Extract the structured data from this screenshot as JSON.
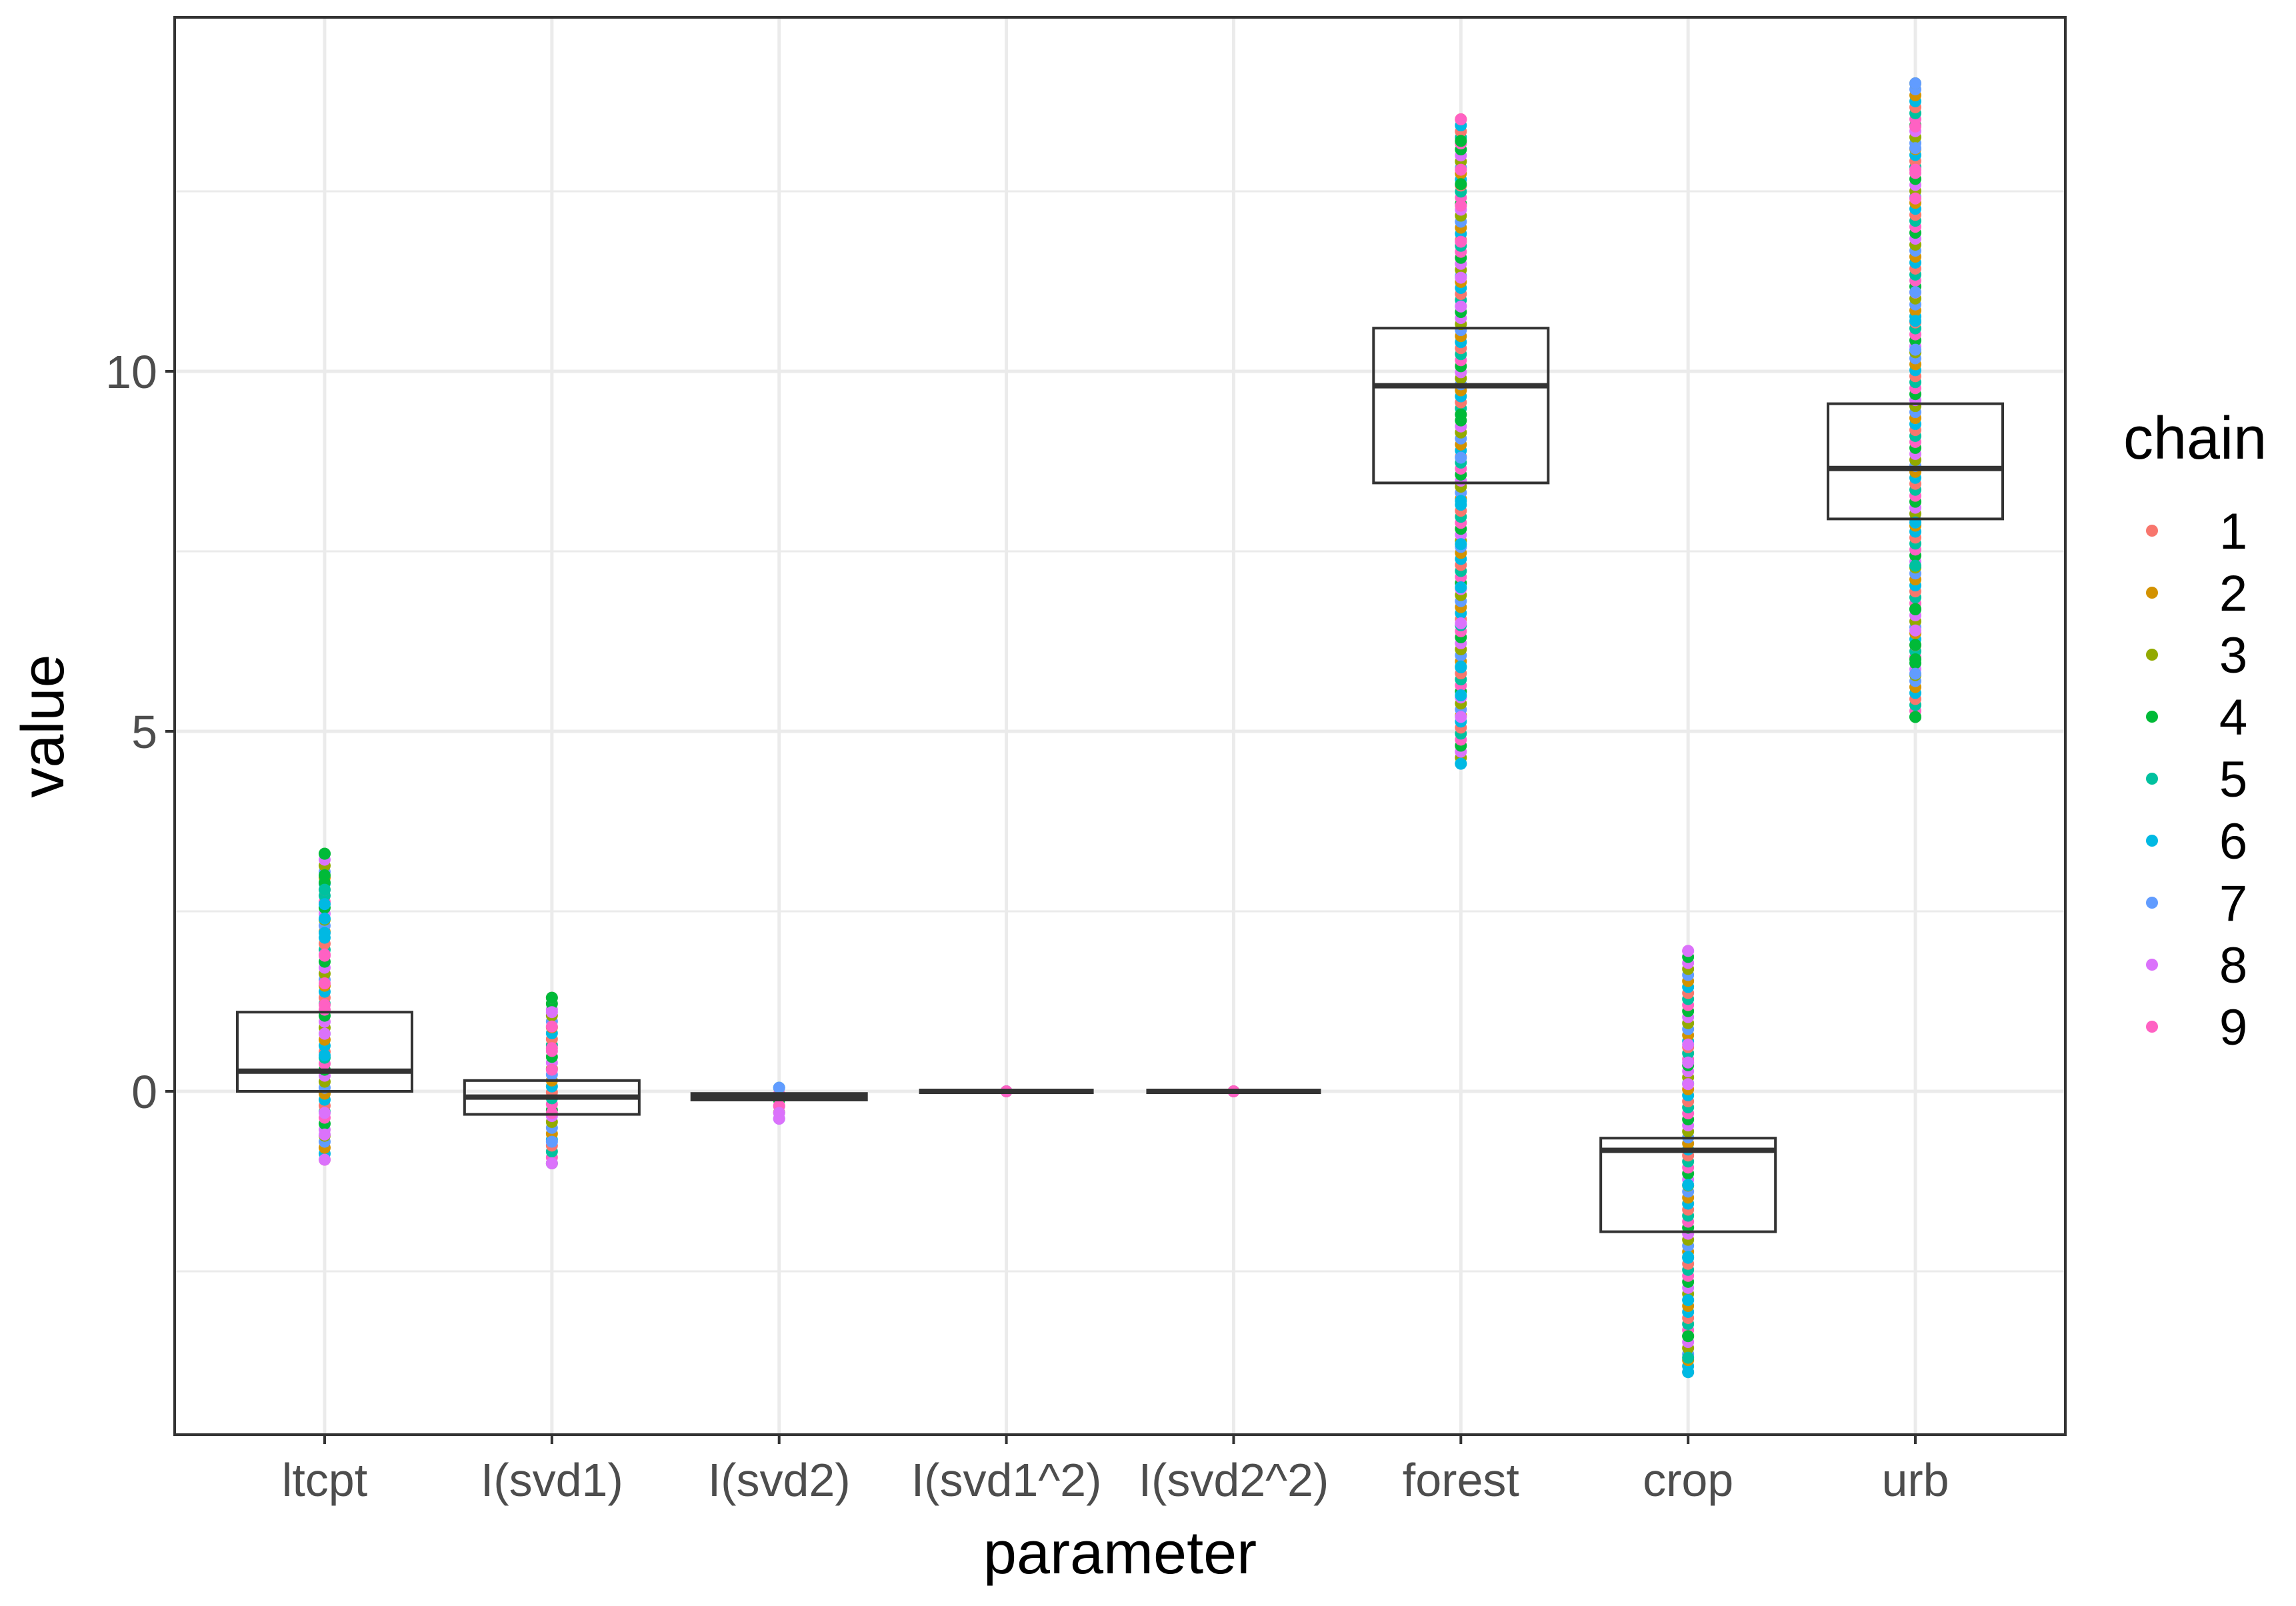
{
  "chart_data": {
    "type": "boxplot",
    "xlabel": "parameter",
    "ylabel": "value",
    "ylim": [
      -4.7,
      15
    ],
    "y_ticks": [
      0,
      5,
      10
    ],
    "y_tick_labels": [
      "0",
      "5",
      "10"
    ],
    "grid": true,
    "legend": {
      "title": "chain",
      "position": "right",
      "entries": [
        "1",
        "2",
        "3",
        "4",
        "5",
        "6",
        "7",
        "8",
        "9"
      ]
    },
    "colors": [
      "#F8766D",
      "#D39200",
      "#93AA00",
      "#00BA38",
      "#00C19F",
      "#00B9E3",
      "#619CFF",
      "#DB72FB",
      "#FF61C3"
    ],
    "categories": [
      "ltcpt",
      "I(svd1)",
      "I(svd2)",
      "I(svd1^2)",
      "I(svd2^2)",
      "forest",
      "crop",
      "urb"
    ],
    "boxes": [
      {
        "category": "ltcpt",
        "q1": 0.0,
        "median": 0.28,
        "q3": 1.1
      },
      {
        "category": "I(svd1)",
        "q1": -0.32,
        "median": -0.08,
        "q3": 0.15
      },
      {
        "category": "I(svd2)",
        "q1": -0.12,
        "median": -0.07,
        "q3": -0.03
      },
      {
        "category": "I(svd1^2)",
        "q1": 0.0,
        "median": 0.0,
        "q3": 0.0
      },
      {
        "category": "I(svd2^2)",
        "q1": 0.0,
        "median": 0.0,
        "q3": 0.0
      },
      {
        "category": "forest",
        "q1": 8.45,
        "median": 9.8,
        "q3": 10.6
      },
      {
        "category": "crop",
        "q1": -1.95,
        "median": -0.82,
        "q3": -0.65
      },
      {
        "category": "urb",
        "q1": 7.95,
        "median": 8.65,
        "q3": 9.55
      }
    ],
    "points": [
      {
        "category": "ltcpt",
        "min": -0.95,
        "max": 3.3,
        "extremes": [
          [
            3.3,
            "4"
          ],
          [
            3.0,
            "4"
          ],
          [
            2.9,
            "4"
          ],
          [
            2.8,
            "5"
          ],
          [
            2.6,
            "6"
          ],
          [
            2.4,
            "6"
          ],
          [
            2.2,
            "6"
          ],
          [
            1.9,
            "9"
          ],
          [
            1.5,
            "9"
          ],
          [
            1.2,
            "9"
          ],
          [
            0.8,
            "8"
          ],
          [
            0.5,
            "6"
          ],
          [
            -0.3,
            "8"
          ],
          [
            -0.6,
            "8"
          ],
          [
            -0.95,
            "8"
          ]
        ]
      },
      {
        "category": "I(svd1)",
        "min": -1.0,
        "max": 1.3,
        "extremes": [
          [
            1.3,
            "4"
          ],
          [
            1.1,
            "8"
          ],
          [
            0.9,
            "9"
          ],
          [
            0.6,
            "9"
          ],
          [
            0.3,
            "9"
          ],
          [
            -0.3,
            "9"
          ],
          [
            -0.7,
            "7"
          ],
          [
            -1.0,
            "8"
          ]
        ]
      },
      {
        "category": "I(svd2)",
        "min": -0.38,
        "max": 0.05,
        "extremes": [
          [
            0.05,
            "7"
          ],
          [
            -0.2,
            "9"
          ],
          [
            -0.3,
            "8"
          ],
          [
            -0.38,
            "8"
          ]
        ]
      },
      {
        "category": "I(svd1^2)",
        "min": 0.0,
        "max": 0.0,
        "extremes": [
          [
            0.0,
            "9"
          ]
        ]
      },
      {
        "category": "I(svd2^2)",
        "min": 0.0,
        "max": 0.0,
        "extremes": [
          [
            0.0,
            "9"
          ]
        ]
      },
      {
        "category": "forest",
        "min": 4.55,
        "max": 13.5,
        "extremes": [
          [
            13.5,
            "9"
          ],
          [
            13.2,
            "4"
          ],
          [
            12.8,
            "9"
          ],
          [
            12.6,
            "4"
          ],
          [
            12.3,
            "9"
          ],
          [
            11.8,
            "9"
          ],
          [
            11.3,
            "8"
          ],
          [
            10.9,
            "8"
          ],
          [
            9.4,
            "4"
          ],
          [
            8.8,
            "7"
          ],
          [
            8.2,
            "6"
          ],
          [
            7.6,
            "6"
          ],
          [
            7.0,
            "6"
          ],
          [
            6.5,
            "8"
          ],
          [
            5.9,
            "6"
          ],
          [
            5.5,
            "6"
          ],
          [
            5.2,
            "8"
          ],
          [
            4.55,
            "6"
          ]
        ]
      },
      {
        "category": "crop",
        "min": -3.9,
        "max": 1.95,
        "extremes": [
          [
            1.95,
            "8"
          ],
          [
            0.65,
            "8"
          ],
          [
            0.4,
            "8"
          ],
          [
            0.1,
            "8"
          ],
          [
            -1.3,
            "6"
          ],
          [
            -2.3,
            "6"
          ],
          [
            -2.9,
            "6"
          ],
          [
            -3.4,
            "4"
          ],
          [
            -3.7,
            "5"
          ],
          [
            -3.9,
            "6"
          ]
        ]
      },
      {
        "category": "urb",
        "min": 5.2,
        "max": 14.0,
        "extremes": [
          [
            14.0,
            "7"
          ],
          [
            13.4,
            "9"
          ],
          [
            13.1,
            "7"
          ],
          [
            12.8,
            "9"
          ],
          [
            12.4,
            "9"
          ],
          [
            11.1,
            "7"
          ],
          [
            10.7,
            "6"
          ],
          [
            10.3,
            "7"
          ],
          [
            7.9,
            "6"
          ],
          [
            7.3,
            "5"
          ],
          [
            6.7,
            "4"
          ],
          [
            6.4,
            "8"
          ],
          [
            6.2,
            "4"
          ],
          [
            6.0,
            "4"
          ],
          [
            5.8,
            "7"
          ],
          [
            5.2,
            "4"
          ]
        ]
      }
    ]
  }
}
